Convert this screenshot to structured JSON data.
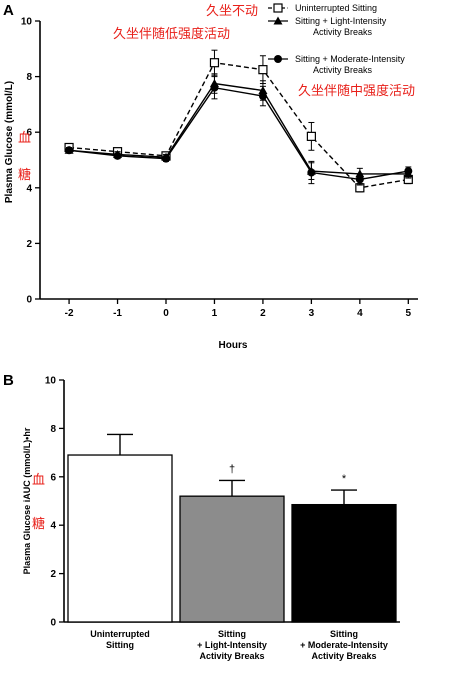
{
  "chart_data": [
    {
      "type": "line",
      "panel_label": "A",
      "xlabel": "Hours",
      "ylabel": "Plasma Glucose (mmol/L)",
      "x": [
        -2,
        -1,
        0,
        1,
        2,
        3,
        4,
        5
      ],
      "xticks": [
        "-2",
        "-1",
        "0",
        "1",
        "2",
        "3",
        "4",
        "5"
      ],
      "yticks": [
        "0",
        "2",
        "4",
        "6",
        "8",
        "10"
      ],
      "xlim": [
        -2.6,
        5.2
      ],
      "ylim": [
        0,
        10
      ],
      "legend_position": "top-right",
      "series": [
        {
          "name": "Uninterrupted Sitting",
          "marker": "open-square",
          "line": "dashed",
          "values": [
            5.45,
            5.3,
            5.15,
            8.5,
            8.25,
            5.85,
            4.0,
            4.3
          ],
          "errors": [
            0.1,
            0.1,
            0.1,
            0.45,
            0.5,
            0.5,
            0.15,
            0.15
          ]
        },
        {
          "name_lines": [
            "Sitting + Light-Intensity",
            "Activity Breaks"
          ],
          "marker": "triangle",
          "line": "solid",
          "values": [
            5.35,
            5.2,
            5.1,
            7.75,
            7.5,
            4.6,
            4.5,
            4.5
          ],
          "errors": [
            0.1,
            0.1,
            0.1,
            0.35,
            0.35,
            0.3,
            0.2,
            0.15
          ]
        },
        {
          "name_lines": [
            "Sitting + Moderate-Intensity",
            "Activity Breaks"
          ],
          "marker": "circle",
          "line": "solid",
          "values": [
            5.35,
            5.15,
            5.05,
            7.6,
            7.3,
            4.55,
            4.3,
            4.6
          ],
          "errors": [
            0.1,
            0.1,
            0.1,
            0.4,
            0.35,
            0.4,
            0.2,
            0.15
          ]
        }
      ],
      "annotations": [
        {
          "text": "久坐不动",
          "color": "#e8201a"
        },
        {
          "text": "久坐伴随低强度活动",
          "color": "#e8201a"
        },
        {
          "text": "久坐伴随中强度活动",
          "color": "#e8201a"
        },
        {
          "text": "血",
          "color": "#e8201a"
        },
        {
          "text": "糖",
          "color": "#e8201a"
        }
      ]
    },
    {
      "type": "bar",
      "panel_label": "B",
      "ylabel": "Plasma Glucose iAUC (mmol/L)•hr",
      "yticks": [
        "0",
        "2",
        "4",
        "6",
        "8",
        "10"
      ],
      "ylim": [
        0,
        10
      ],
      "categories": [
        [
          "Uninterrupted",
          "Sitting"
        ],
        [
          "Sitting",
          "+ Light-Intensity",
          "Activity Breaks"
        ],
        [
          "Sitting",
          "+ Moderate-Intensity",
          "Activity Breaks"
        ]
      ],
      "values": [
        6.9,
        5.2,
        4.85
      ],
      "errors": [
        0.85,
        0.65,
        0.6
      ],
      "bar_colors": [
        "#ffffff",
        "#8c8c8c",
        "#000000"
      ],
      "significance": [
        "",
        "†",
        "*"
      ],
      "annotations": [
        {
          "text": "血",
          "color": "#e8201a"
        },
        {
          "text": "糖",
          "color": "#e8201a"
        }
      ]
    }
  ]
}
